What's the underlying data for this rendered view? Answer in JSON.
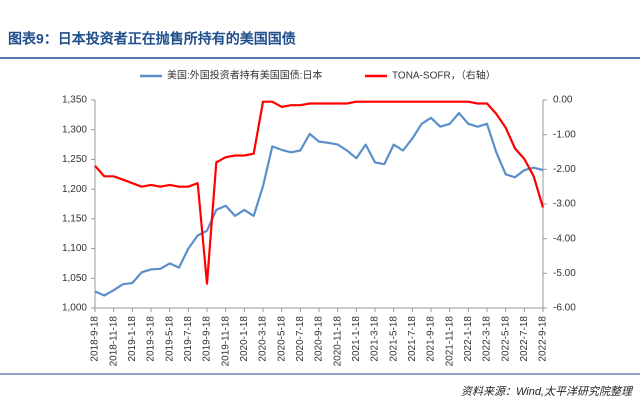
{
  "title": "图表9：日本投资者正在抛售所持有的美国国债",
  "source": "资料来源：Wind,太平洋研究院整理",
  "chart_data": {
    "type": "line",
    "categories": [
      "2018-9-18",
      null,
      "2018-11-18",
      null,
      "2019-1-18",
      null,
      "2019-3-18",
      null,
      "2019-5-18",
      null,
      "2019-7-18",
      null,
      "2019-9-18",
      null,
      "2019-11-18",
      null,
      "2020-1-18",
      null,
      "2020-3-18",
      null,
      "2020-5-18",
      null,
      "2020-7-18",
      null,
      "2020-9-18",
      null,
      "2020-11-18",
      null,
      "2021-1-18",
      null,
      "2021-3-18",
      null,
      "2021-5-18",
      null,
      "2021-7-18",
      null,
      "2021-9-18",
      null,
      "2021-11-18",
      null,
      "2022-1-18",
      null,
      "2022-3-18",
      null,
      "2022-5-18",
      null,
      "2022-7-18",
      null,
      "2022-9-18"
    ],
    "series": [
      {
        "name": "美国:外国投资者持有美国国债:日本",
        "color": "#5b8fc9",
        "values": [
          1028,
          1021,
          1030,
          1040,
          1042,
          1060,
          1065,
          1066,
          1075,
          1068,
          1100,
          1122,
          1130,
          1165,
          1172,
          1155,
          1165,
          1155,
          1205,
          1272,
          1266,
          1262,
          1265,
          1293,
          1280,
          1278,
          1275,
          1265,
          1252,
          1275,
          1245,
          1242,
          1275,
          1265,
          1285,
          1310,
          1320,
          1305,
          1310,
          1328,
          1310,
          1305,
          1310,
          1262,
          1225,
          1220,
          1232,
          1236,
          1232
        ]
      },
      {
        "name": "TONA-SOFR，（右轴）",
        "color": "#ff0000",
        "axis": "y2",
        "values": [
          -1.9,
          -2.2,
          -2.2,
          -2.3,
          -2.4,
          -2.5,
          -2.45,
          -2.5,
          -2.45,
          -2.5,
          -2.5,
          -2.4,
          -5.3,
          -1.8,
          -1.65,
          -1.6,
          -1.6,
          -1.55,
          -0.05,
          -0.05,
          -0.2,
          -0.15,
          -0.15,
          -0.1,
          -0.1,
          -0.1,
          -0.1,
          -0.1,
          -0.05,
          -0.05,
          -0.05,
          -0.05,
          -0.05,
          -0.05,
          -0.05,
          -0.05,
          -0.05,
          -0.05,
          -0.05,
          -0.05,
          -0.05,
          -0.1,
          -0.1,
          -0.4,
          -0.8,
          -1.4,
          -1.7,
          -2.2,
          -3.1
        ]
      }
    ],
    "ylim": [
      1000,
      1350
    ],
    "yticks": [
      {
        "value": 1000,
        "label": "1,000"
      },
      {
        "value": 1050,
        "label": "1,050"
      },
      {
        "value": 1100,
        "label": "1,100"
      },
      {
        "value": 1150,
        "label": "1,150"
      },
      {
        "value": 1200,
        "label": "1,200"
      },
      {
        "value": 1250,
        "label": "1,250"
      },
      {
        "value": 1300,
        "label": "1,300"
      },
      {
        "value": 1350,
        "label": "1,350"
      }
    ],
    "y2lim": [
      -6,
      0
    ],
    "y2ticks": [
      {
        "value": 0,
        "label": "0.00"
      },
      {
        "value": -1,
        "label": "-1.00"
      },
      {
        "value": -2,
        "label": "-2.00"
      },
      {
        "value": -3,
        "label": "-3.00"
      },
      {
        "value": -4,
        "label": "-4.00"
      },
      {
        "value": -5,
        "label": "-5.00"
      },
      {
        "value": -6,
        "label": "-6.00"
      }
    ],
    "grid": false
  }
}
